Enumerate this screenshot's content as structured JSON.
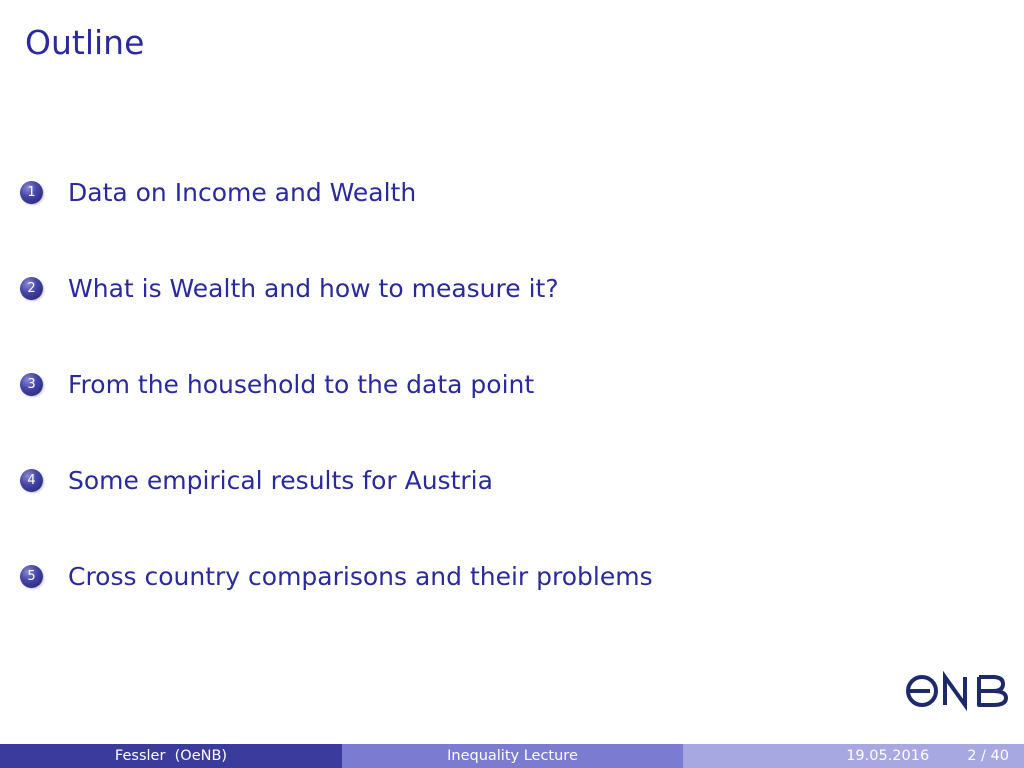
{
  "frame": {
    "title": "Outline"
  },
  "outline": {
    "items": [
      {
        "number": "1",
        "label": "Data on Income and Wealth"
      },
      {
        "number": "2",
        "label": "What is Wealth and how to measure it?"
      },
      {
        "number": "3",
        "label": "From the household to the data point"
      },
      {
        "number": "4",
        "label": "Some empirical results for Austria"
      },
      {
        "number": "5",
        "label": "Cross country comparisons and their problems"
      }
    ]
  },
  "logo": {
    "text": "ONB",
    "icon": "oenb-logo-icon"
  },
  "footer": {
    "author": "Fessler  (OeNB)",
    "title": "Inequality Lecture",
    "date": "19.05.2016",
    "page": "2 / 40"
  },
  "colors": {
    "title": "#2a2a9c",
    "footer_dark": "#3b3b9e",
    "footer_mid": "#7b7bd1",
    "footer_light": "#a7a7e2"
  }
}
